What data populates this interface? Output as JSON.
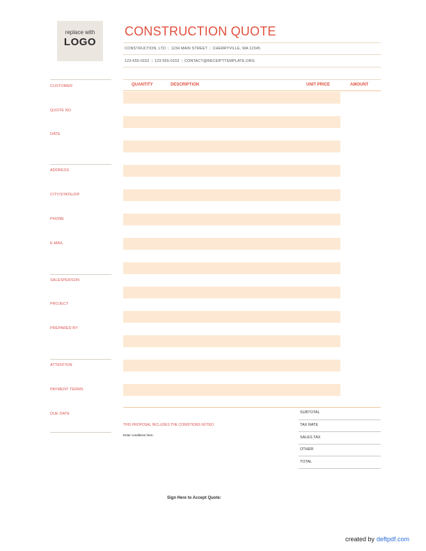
{
  "logo": {
    "small": "replace with",
    "big": "LOGO"
  },
  "header": {
    "title": "CONSTRUCTION QUOTE",
    "company_line": [
      "CONSTRUCTION, LTD",
      "1234 MAIN STREET",
      "CHERRYVILLE, WA 12345"
    ],
    "contact_line": [
      "123-555-0152",
      "123-555-0153",
      "CONTACT@RECEIPTTEMPLATE.ORG"
    ]
  },
  "sidebar": {
    "customer": "CUSTOMER",
    "quote_no": "QUOTE NO",
    "date": "DATE",
    "address": "ADDRESS",
    "city_state_zip": "CITY/STATE/ZIP",
    "phone": "PHONE",
    "email": "E-MAIL",
    "salesperson": "SALESPERSON",
    "project": "PROJECT",
    "prepared_by": "PREPARED BY:",
    "attention": "ATTENTION",
    "payment_terms": "PAYMENT TERMS",
    "due_date": "DUE DATE"
  },
  "table": {
    "headers": {
      "quantity": "QUANTITY",
      "description": "DESCRIPTION",
      "unit_price": "UNIT PRICE",
      "amount": "AMOUNT"
    }
  },
  "totals": {
    "subtotal": "SUBTOTAL",
    "tax_rate": "TAX RATE",
    "sales_tax": "SALES TAX",
    "other": "OTHER",
    "total": "TOTAL"
  },
  "conditions": {
    "heading": "THIS PROPOSAL INCLUDES THE CONDITIONS NOTED:",
    "body": "Enter conditions here."
  },
  "signature": {
    "label": "Sign Here to Accept Quote:"
  },
  "footer": {
    "created_by": "created by",
    "brand": "deftpdf.com"
  },
  "colors": {
    "accent": "#e0503e",
    "stripe": "#fde9d3",
    "rule": "#ead8c6"
  }
}
